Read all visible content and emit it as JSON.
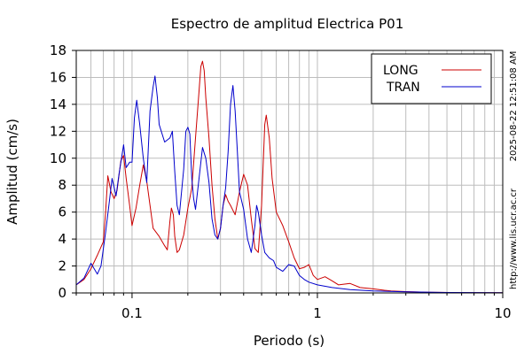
{
  "chart_data": {
    "type": "line",
    "title": "Espectro de amplitud Electrica P01",
    "xlabel": "Periodo (s)",
    "ylabel": "Amplitud (cm/s)",
    "x_scale": "log",
    "xlim": [
      0.05,
      10
    ],
    "ylim": [
      0,
      18
    ],
    "x_ticks": [
      0.1,
      1,
      10
    ],
    "x_tick_labels": [
      "0.1",
      "1",
      "10"
    ],
    "y_ticks": [
      0,
      2,
      4,
      6,
      8,
      10,
      12,
      14,
      16,
      18
    ],
    "y_tick_labels": [
      "0",
      "2",
      "4",
      "6",
      "8",
      "10",
      "12",
      "14",
      "16",
      "18"
    ],
    "grid": true,
    "legend_position": "top-right",
    "series": [
      {
        "name": "LONG",
        "color": "#cc0000",
        "points": [
          [
            0.05,
            0.6
          ],
          [
            0.055,
            1.0
          ],
          [
            0.06,
            1.8
          ],
          [
            0.065,
            2.8
          ],
          [
            0.07,
            3.8
          ],
          [
            0.072,
            6.0
          ],
          [
            0.074,
            8.7
          ],
          [
            0.077,
            7.5
          ],
          [
            0.08,
            7.0
          ],
          [
            0.083,
            7.6
          ],
          [
            0.087,
            9.8
          ],
          [
            0.09,
            10.2
          ],
          [
            0.093,
            8.5
          ],
          [
            0.097,
            6.5
          ],
          [
            0.1,
            5.0
          ],
          [
            0.105,
            6.3
          ],
          [
            0.11,
            8.0
          ],
          [
            0.115,
            9.5
          ],
          [
            0.12,
            8.3
          ],
          [
            0.125,
            6.5
          ],
          [
            0.13,
            4.8
          ],
          [
            0.14,
            4.2
          ],
          [
            0.15,
            3.5
          ],
          [
            0.155,
            3.2
          ],
          [
            0.16,
            5.3
          ],
          [
            0.163,
            6.3
          ],
          [
            0.167,
            5.8
          ],
          [
            0.17,
            4.2
          ],
          [
            0.175,
            3.0
          ],
          [
            0.18,
            3.2
          ],
          [
            0.19,
            4.3
          ],
          [
            0.2,
            6.3
          ],
          [
            0.21,
            7.8
          ],
          [
            0.22,
            11.5
          ],
          [
            0.23,
            15.0
          ],
          [
            0.235,
            16.8
          ],
          [
            0.24,
            17.2
          ],
          [
            0.245,
            16.5
          ],
          [
            0.25,
            14.5
          ],
          [
            0.26,
            11.5
          ],
          [
            0.27,
            8.0
          ],
          [
            0.28,
            5.5
          ],
          [
            0.29,
            4.0
          ],
          [
            0.3,
            4.8
          ],
          [
            0.31,
            6.5
          ],
          [
            0.32,
            7.3
          ],
          [
            0.33,
            6.8
          ],
          [
            0.34,
            6.5
          ],
          [
            0.36,
            5.8
          ],
          [
            0.38,
            7.5
          ],
          [
            0.4,
            8.8
          ],
          [
            0.42,
            8.0
          ],
          [
            0.44,
            5.5
          ],
          [
            0.46,
            3.3
          ],
          [
            0.48,
            3.0
          ],
          [
            0.5,
            6.5
          ],
          [
            0.52,
            12.5
          ],
          [
            0.53,
            13.2
          ],
          [
            0.55,
            11.5
          ],
          [
            0.57,
            8.5
          ],
          [
            0.6,
            6.0
          ],
          [
            0.65,
            5.0
          ],
          [
            0.7,
            3.8
          ],
          [
            0.75,
            2.6
          ],
          [
            0.8,
            1.8
          ],
          [
            0.85,
            1.9
          ],
          [
            0.9,
            2.1
          ],
          [
            0.95,
            1.3
          ],
          [
            1.0,
            1.0
          ],
          [
            1.1,
            1.2
          ],
          [
            1.2,
            0.9
          ],
          [
            1.3,
            0.6
          ],
          [
            1.5,
            0.7
          ],
          [
            1.7,
            0.4
          ],
          [
            2.0,
            0.3
          ],
          [
            2.3,
            0.2
          ],
          [
            2.5,
            0.15
          ],
          [
            3.0,
            0.1
          ],
          [
            4.0,
            0.05
          ],
          [
            6.0,
            0.02
          ],
          [
            10.0,
            0.01
          ]
        ]
      },
      {
        "name": "TRAN",
        "color": "#0000cc",
        "points": [
          [
            0.05,
            0.6
          ],
          [
            0.055,
            1.1
          ],
          [
            0.06,
            2.2
          ],
          [
            0.065,
            1.4
          ],
          [
            0.068,
            2.0
          ],
          [
            0.072,
            4.5
          ],
          [
            0.075,
            6.5
          ],
          [
            0.078,
            8.5
          ],
          [
            0.082,
            7.2
          ],
          [
            0.085,
            8.8
          ],
          [
            0.09,
            11.0
          ],
          [
            0.093,
            9.3
          ],
          [
            0.097,
            9.7
          ],
          [
            0.1,
            9.7
          ],
          [
            0.103,
            13.0
          ],
          [
            0.106,
            14.3
          ],
          [
            0.11,
            12.5
          ],
          [
            0.115,
            10.0
          ],
          [
            0.12,
            8.2
          ],
          [
            0.125,
            13.5
          ],
          [
            0.13,
            15.3
          ],
          [
            0.133,
            16.1
          ],
          [
            0.137,
            14.5
          ],
          [
            0.14,
            12.5
          ],
          [
            0.15,
            11.2
          ],
          [
            0.16,
            11.5
          ],
          [
            0.165,
            12.0
          ],
          [
            0.17,
            9.0
          ],
          [
            0.175,
            6.5
          ],
          [
            0.18,
            5.8
          ],
          [
            0.19,
            9.2
          ],
          [
            0.195,
            12.0
          ],
          [
            0.2,
            12.3
          ],
          [
            0.205,
            11.8
          ],
          [
            0.21,
            8.5
          ],
          [
            0.215,
            7.0
          ],
          [
            0.22,
            6.2
          ],
          [
            0.23,
            8.5
          ],
          [
            0.24,
            10.8
          ],
          [
            0.25,
            10.0
          ],
          [
            0.26,
            8.2
          ],
          [
            0.27,
            5.5
          ],
          [
            0.28,
            4.3
          ],
          [
            0.29,
            4.0
          ],
          [
            0.3,
            4.8
          ],
          [
            0.31,
            6.5
          ],
          [
            0.32,
            7.8
          ],
          [
            0.33,
            10.5
          ],
          [
            0.34,
            14.0
          ],
          [
            0.35,
            15.4
          ],
          [
            0.36,
            13.5
          ],
          [
            0.37,
            10.5
          ],
          [
            0.38,
            7.5
          ],
          [
            0.4,
            6.2
          ],
          [
            0.42,
            4.0
          ],
          [
            0.44,
            3.0
          ],
          [
            0.46,
            5.0
          ],
          [
            0.47,
            6.5
          ],
          [
            0.48,
            6.0
          ],
          [
            0.5,
            4.3
          ],
          [
            0.52,
            3.0
          ],
          [
            0.55,
            2.6
          ],
          [
            0.58,
            2.4
          ],
          [
            0.6,
            1.9
          ],
          [
            0.65,
            1.6
          ],
          [
            0.7,
            2.1
          ],
          [
            0.75,
            2.0
          ],
          [
            0.8,
            1.3
          ],
          [
            0.85,
            1.0
          ],
          [
            0.9,
            0.8
          ],
          [
            1.0,
            0.6
          ],
          [
            1.2,
            0.4
          ],
          [
            1.5,
            0.25
          ],
          [
            2.0,
            0.15
          ],
          [
            3.0,
            0.08
          ],
          [
            5.0,
            0.03
          ],
          [
            10.0,
            0.01
          ]
        ]
      }
    ],
    "annotations": [
      "2025-08-22 12:51:08 AM",
      "http://www.lis.ucr.ac.cr"
    ]
  }
}
